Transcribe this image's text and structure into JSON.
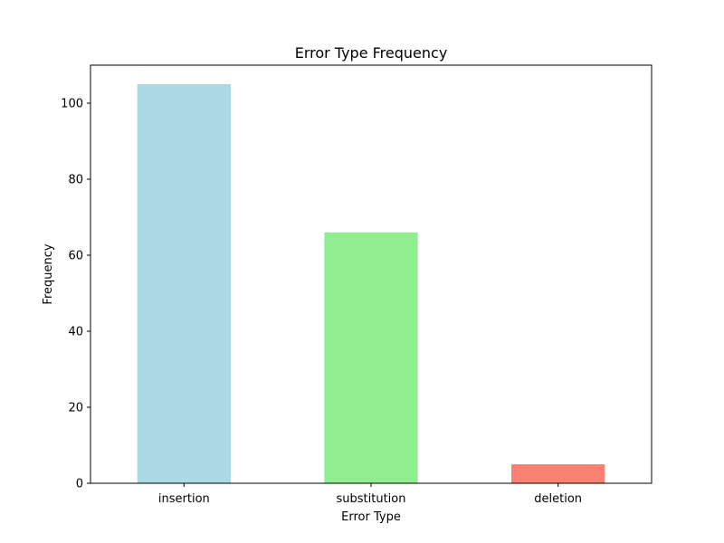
{
  "chart_data": {
    "type": "bar",
    "title": "Error Type Frequency",
    "xlabel": "Error Type",
    "ylabel": "Frequency",
    "categories": [
      "insertion",
      "substitution",
      "deletion"
    ],
    "values": [
      105,
      66,
      5
    ],
    "colors": [
      "#add8e6",
      "#90ee90",
      "#fa8072"
    ],
    "ylim": [
      0,
      110
    ],
    "yticks": [
      0,
      20,
      40,
      60,
      80,
      100
    ],
    "ytick_labels": [
      "0",
      "20",
      "40",
      "60",
      "80",
      "100"
    ],
    "grid": false,
    "legend": "none"
  }
}
